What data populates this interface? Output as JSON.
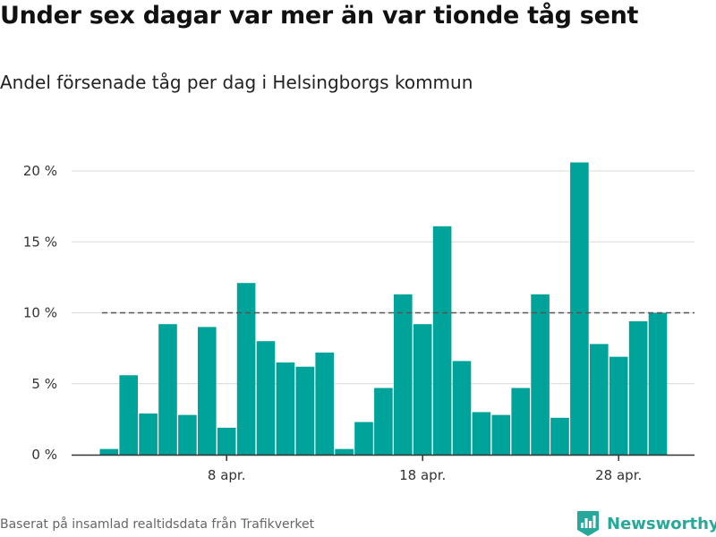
{
  "title": "Under sex dagar var mer än var tionde tåg sent",
  "subtitle": "Andel försenade tåg per dag i Helsingborgs kommun",
  "source": "Baserat på insamlad realtidsdata från Trafikverket",
  "brand": {
    "name": "Newsworthy",
    "icon": "newsworthy-logo-icon",
    "color": "#27a89a"
  },
  "chart_data": {
    "type": "bar",
    "title": "Under sex dagar var mer än var tionde tåg sent",
    "subtitle": "Andel försenade tåg per dag i Helsingborgs kommun",
    "xlabel": "",
    "ylabel": "",
    "ylim": [
      0,
      20
    ],
    "y_ticks": [
      0,
      5,
      10,
      15,
      20
    ],
    "y_tick_labels": [
      "0 %",
      "5 %",
      "10 %",
      "15 %",
      "20 %"
    ],
    "y_unit": "%",
    "categories": [
      "2 apr.",
      "3 apr.",
      "4 apr.",
      "5 apr.",
      "6 apr.",
      "7 apr.",
      "8 apr.",
      "9 apr.",
      "10 apr.",
      "11 apr.",
      "12 apr.",
      "13 apr.",
      "14 apr.",
      "15 apr.",
      "16 apr.",
      "17 apr.",
      "18 apr.",
      "19 apr.",
      "20 apr.",
      "21 apr.",
      "22 apr.",
      "23 apr.",
      "24 apr.",
      "25 apr.",
      "26 apr.",
      "27 apr.",
      "28 apr.",
      "29 apr.",
      "30 apr."
    ],
    "x_tick_labels": [
      {
        "category": "8 apr.",
        "label": "8 apr."
      },
      {
        "category": "18 apr.",
        "label": "18 apr."
      },
      {
        "category": "28 apr.",
        "label": "28 apr."
      }
    ],
    "values": [
      0.4,
      5.6,
      2.9,
      9.2,
      2.8,
      9.0,
      1.9,
      12.1,
      8.0,
      6.5,
      6.2,
      7.2,
      0.4,
      2.3,
      4.7,
      11.3,
      9.2,
      16.1,
      6.6,
      3.0,
      2.8,
      4.7,
      11.3,
      2.6,
      20.6,
      7.8,
      6.9,
      9.4,
      10.0
    ],
    "reference_line": {
      "value": 10,
      "style": "dashed"
    },
    "bar_color": "#00a39a",
    "grid": true,
    "legend": "none"
  }
}
